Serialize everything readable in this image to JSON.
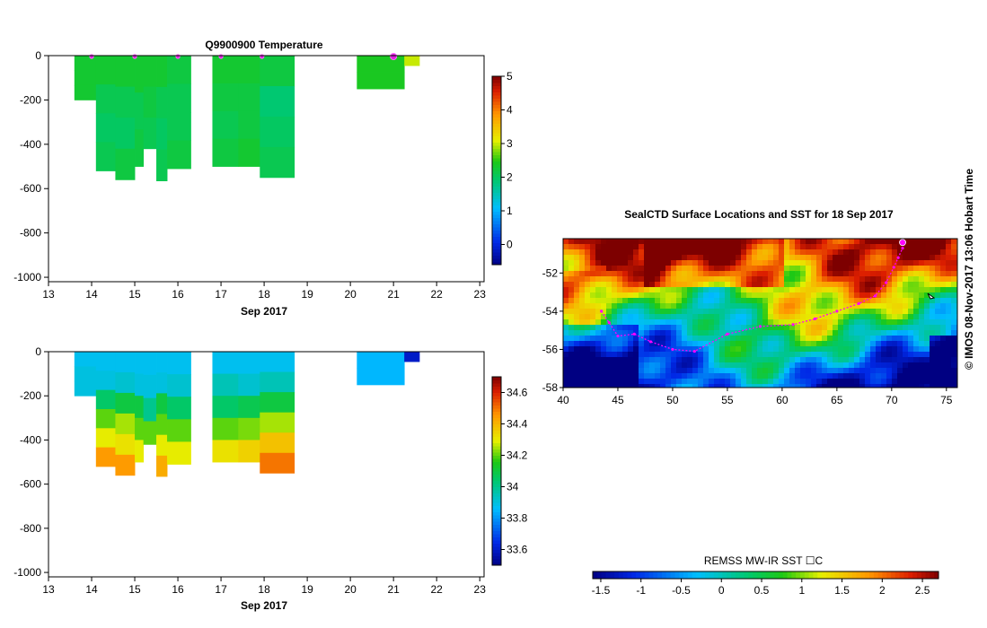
{
  "chart_data": [
    {
      "type": "heatmap",
      "id": "temp",
      "title": "Q9900900  Temperature",
      "xlabel": "Sep 2017",
      "xlim": [
        13,
        23.1
      ],
      "ylim": [
        -1020,
        0
      ],
      "xticks": [
        "13",
        "14",
        "15",
        "16",
        "17",
        "18",
        "19",
        "20",
        "21",
        "22",
        "23"
      ],
      "yticks": [
        "0",
        "-200",
        "-400",
        "-600",
        "-800",
        "-1000"
      ],
      "colorbar": {
        "min": -0.6,
        "max": 5,
        "ticks": [
          "0",
          "1",
          "2",
          "3",
          "4",
          "5"
        ]
      },
      "profiles": [
        {
          "x0": 13.6,
          "x1": 14.1,
          "depth": 200,
          "values": [
            2.3,
            2.3,
            2.3
          ]
        },
        {
          "x0": 14.1,
          "x1": 14.55,
          "depth": 520,
          "values": [
            2.3,
            2.1,
            2.0,
            2.1
          ]
        },
        {
          "x0": 14.55,
          "x1": 15.0,
          "depth": 560,
          "values": [
            2.3,
            2.1,
            2.0,
            2.2
          ]
        },
        {
          "x0": 15.0,
          "x1": 15.2,
          "depth": 500,
          "values": [
            2.3,
            2.1,
            2.2
          ]
        },
        {
          "x0": 15.2,
          "x1": 15.5,
          "depth": 420,
          "values": [
            2.3,
            2.2,
            2.1
          ]
        },
        {
          "x0": 15.5,
          "x1": 15.75,
          "depth": 565,
          "values": [
            2.3,
            2.1,
            2.0,
            2.1
          ]
        },
        {
          "x0": 15.75,
          "x1": 16.3,
          "depth": 510,
          "values": [
            2.2,
            2.1,
            2.1,
            2.2
          ]
        },
        {
          "x0": 16.8,
          "x1": 17.4,
          "depth": 500,
          "values": [
            2.3,
            2.2,
            2.1,
            2.2
          ]
        },
        {
          "x0": 17.4,
          "x1": 17.9,
          "depth": 500,
          "values": [
            2.3,
            2.2,
            2.2,
            2.3
          ]
        },
        {
          "x0": 17.9,
          "x1": 18.7,
          "depth": 550,
          "values": [
            2.2,
            1.9,
            2.0,
            2.1
          ]
        },
        {
          "x0": 20.15,
          "x1": 21.25,
          "depth": 150,
          "values": [
            2.4,
            2.4
          ]
        },
        {
          "x0": 21.25,
          "x1": 21.6,
          "depth": 45,
          "values": [
            3.0
          ]
        }
      ],
      "markers_x": [
        14.0,
        15.0,
        16.0,
        17.0,
        17.95,
        21.0
      ]
    },
    {
      "type": "heatmap",
      "id": "sal",
      "title": "",
      "xlabel": "Sep 2017",
      "xlim": [
        13,
        23.1
      ],
      "ylim": [
        -1020,
        0
      ],
      "xticks": [
        "13",
        "14",
        "15",
        "16",
        "17",
        "18",
        "19",
        "20",
        "21",
        "22",
        "23"
      ],
      "yticks": [
        "0",
        "-200",
        "-400",
        "-600",
        "-800",
        "-1000"
      ],
      "colorbar": {
        "min": 33.5,
        "max": 34.7,
        "ticks": [
          "33.6",
          "33.8",
          "34",
          "34.2",
          "34.4",
          "34.6"
        ]
      },
      "profiles": [
        {
          "x0": 13.6,
          "x1": 14.1,
          "depth": 200,
          "values": [
            33.88,
            33.9,
            33.9
          ]
        },
        {
          "x0": 14.1,
          "x1": 14.55,
          "depth": 520,
          "values": [
            33.88,
            33.9,
            34.05,
            34.2,
            34.3,
            34.45
          ]
        },
        {
          "x0": 14.55,
          "x1": 15.0,
          "depth": 560,
          "values": [
            33.88,
            33.92,
            34.1,
            34.25,
            34.32,
            34.45
          ]
        },
        {
          "x0": 15.0,
          "x1": 15.2,
          "depth": 500,
          "values": [
            33.88,
            33.9,
            34.1,
            34.2,
            34.3
          ]
        },
        {
          "x0": 15.2,
          "x1": 15.5,
          "depth": 420,
          "values": [
            33.88,
            33.9,
            34.0,
            34.2
          ]
        },
        {
          "x0": 15.5,
          "x1": 15.75,
          "depth": 565,
          "values": [
            33.88,
            33.9,
            34.1,
            34.2,
            34.3,
            34.42
          ]
        },
        {
          "x0": 15.75,
          "x1": 16.3,
          "depth": 510,
          "values": [
            33.88,
            33.92,
            34.05,
            34.2,
            34.3
          ]
        },
        {
          "x0": 16.8,
          "x1": 17.4,
          "depth": 500,
          "values": [
            33.88,
            33.95,
            34.05,
            34.2,
            34.32
          ]
        },
        {
          "x0": 17.4,
          "x1": 17.9,
          "depth": 500,
          "values": [
            33.88,
            33.92,
            34.08,
            34.22,
            34.35
          ]
        },
        {
          "x0": 17.9,
          "x1": 18.7,
          "depth": 550,
          "values": [
            33.88,
            33.95,
            34.1,
            34.25,
            34.38,
            34.5
          ]
        },
        {
          "x0": 20.15,
          "x1": 21.25,
          "depth": 150,
          "values": [
            33.85,
            33.85
          ]
        },
        {
          "x0": 21.25,
          "x1": 21.6,
          "depth": 45,
          "values": [
            33.6
          ]
        }
      ]
    },
    {
      "type": "heatmap",
      "id": "map",
      "title": "SealCTD Surface Locations and SST for 18 Sep 2017",
      "xlim": [
        40,
        76
      ],
      "ylim": [
        -58,
        -50.2
      ],
      "xticks": [
        "40",
        "45",
        "50",
        "55",
        "60",
        "65",
        "70",
        "75"
      ],
      "yticks": [
        "-52",
        "-54",
        "-56",
        "-58"
      ],
      "colorbar_label": "REMSS MW-IR SST ☐C",
      "colorbar": {
        "min": -1.6,
        "max": 2.7,
        "ticks": [
          "-1.5",
          "-1",
          "-0.5",
          "0",
          "0.5",
          "1",
          "1.5",
          "2",
          "2.5"
        ]
      },
      "track": [
        [
          43.5,
          -54.0
        ],
        [
          44.2,
          -54.6
        ],
        [
          45.0,
          -55.3
        ],
        [
          46.5,
          -55.2
        ],
        [
          48.0,
          -55.6
        ],
        [
          50.0,
          -56.0
        ],
        [
          52.0,
          -56.1
        ],
        [
          55.0,
          -55.2
        ],
        [
          58.0,
          -54.8
        ],
        [
          61.0,
          -54.7
        ],
        [
          63.0,
          -54.4
        ],
        [
          65.0,
          -54.0
        ],
        [
          67.0,
          -53.6
        ],
        [
          68.5,
          -53.2
        ],
        [
          69.5,
          -52.5
        ],
        [
          70.2,
          -51.7
        ],
        [
          70.6,
          -51.2
        ],
        [
          71.0,
          -50.7
        ]
      ],
      "end_marker": [
        71.0,
        -50.4
      ]
    }
  ],
  "side_label": "©  IMOS 08-Nov-2017 13:06 Hobart Time"
}
